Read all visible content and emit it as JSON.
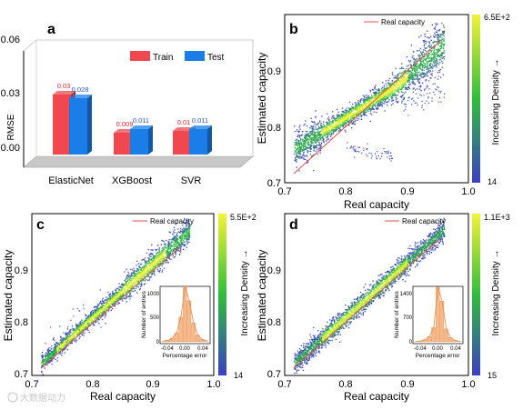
{
  "colors": {
    "train": "#f0484e",
    "test": "#1a7de8",
    "train_label": "#d9262b",
    "test_label": "#2a53c8",
    "ideal_line": "#e0504a",
    "density_low": "#3a3fc2",
    "density_mid": "#2fbe3a",
    "density_high": "#f3f335"
  },
  "chart_data": [
    {
      "panel": "a",
      "type": "bar",
      "categories": [
        "ElasticNet",
        "XGBoost",
        "SVR"
      ],
      "series": [
        {
          "name": "Train",
          "values": [
            0.03,
            0.009,
            0.01
          ],
          "labels": [
            "0.03",
            "0.009",
            "0.01"
          ]
        },
        {
          "name": "Test",
          "values": [
            0.028,
            0.011,
            0.011
          ],
          "labels": [
            "0.028",
            "0.011",
            "0.011"
          ]
        }
      ],
      "ylabel": "RMSE",
      "yticks": [
        "0.00",
        "0.03",
        "0.06"
      ],
      "ylim": [
        0,
        0.06
      ],
      "legend": "top-right"
    },
    {
      "panel": "b",
      "type": "scatter",
      "xlabel": "Real capacity",
      "ylabel": "Estimated capacity",
      "xlim": [
        0.7,
        1.0
      ],
      "ylim": [
        0.7,
        0.975
      ],
      "xticks": [
        "0.7",
        "0.8",
        "0.9",
        "1.0"
      ],
      "yticks": [
        "0.7",
        "0.8",
        "0.9"
      ],
      "legend": "Real capacity",
      "colorbar": {
        "label": "Increasing Density →",
        "max": "6.5E+2",
        "min": "14"
      },
      "ideal_line": [
        [
          0.72,
          0.72
        ],
        [
          0.96,
          0.96
        ]
      ]
    },
    {
      "panel": "c",
      "type": "scatter",
      "xlabel": "Real capacity",
      "ylabel": "Estimated capacity",
      "xlim": [
        0.7,
        1.0
      ],
      "ylim": [
        0.7,
        0.99
      ],
      "xticks": [
        "0.7",
        "0.8",
        "0.9",
        "1.0"
      ],
      "yticks": [
        "0.7",
        "0.8",
        "0.9"
      ],
      "legend": "Real capacity",
      "colorbar": {
        "label": "Increasing Density →",
        "max": "5.5E+2",
        "min": "14"
      },
      "ideal_line": [
        [
          0.72,
          0.72
        ],
        [
          0.955,
          0.955
        ]
      ],
      "inset": {
        "type": "histogram",
        "xlabel": "Percentage error",
        "ylabel": "Number of entries",
        "xticks": [
          "-0.04",
          "0.00",
          "0.04"
        ],
        "yticks": [
          "0",
          "500",
          "1000"
        ],
        "bins": [
          -0.035,
          -0.028,
          -0.021,
          -0.014,
          -0.007,
          0.0,
          0.007,
          0.014,
          0.021,
          0.028,
          0.035
        ],
        "counts": [
          15,
          30,
          70,
          170,
          470,
          1060,
          780,
          360,
          130,
          50,
          20
        ]
      }
    },
    {
      "panel": "d",
      "type": "scatter",
      "xlabel": "Real capacity",
      "ylabel": "Estimated capacity",
      "xlim": [
        0.7,
        1.0
      ],
      "ylim": [
        0.7,
        0.99
      ],
      "xticks": [
        "0.7",
        "0.8",
        "0.9",
        "1.0"
      ],
      "yticks": [
        "0.7",
        "0.8",
        "0.9"
      ],
      "legend": "Real capacity",
      "colorbar": {
        "label": "Increasing Density →",
        "max": "1.1E+3",
        "min": "15"
      },
      "ideal_line": [
        [
          0.72,
          0.72
        ],
        [
          0.96,
          0.96
        ]
      ],
      "inset": {
        "type": "histogram",
        "xlabel": "Percentage error",
        "ylabel": "Number of entries",
        "xticks": [
          "-0.04",
          "0.00",
          "0.04"
        ],
        "yticks": [
          "0",
          "700",
          "1400"
        ],
        "bins": [
          -0.035,
          -0.028,
          -0.021,
          -0.014,
          -0.007,
          0.0,
          0.007,
          0.014,
          0.021,
          0.028,
          0.035
        ],
        "counts": [
          10,
          25,
          60,
          140,
          380,
          1450,
          1080,
          340,
          110,
          40,
          15
        ]
      }
    }
  ],
  "watermark": "大数据动力"
}
